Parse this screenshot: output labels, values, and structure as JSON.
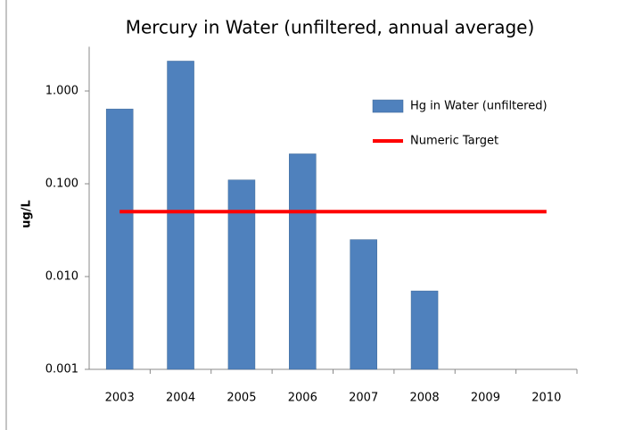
{
  "chart_data": {
    "type": "bar",
    "title": "Mercury in Water (unfiltered, annual average)",
    "y_label": "ug/L",
    "categories": [
      "2003",
      "2004",
      "2005",
      "2006",
      "2007",
      "2008",
      "2009",
      "2010"
    ],
    "series": [
      {
        "name": "Hg in Water (unfiltered)",
        "type": "bar",
        "color": "#4f81bd",
        "values": [
          0.64,
          2.1,
          0.11,
          0.21,
          0.025,
          0.007,
          null,
          null
        ]
      },
      {
        "name": "Numeric Target",
        "type": "line",
        "color": "#ff0000",
        "values": [
          0.05,
          0.05,
          0.05,
          0.05,
          0.05,
          0.05,
          0.05,
          0.05
        ]
      }
    ],
    "log_scale": true,
    "ylim": [
      0.001,
      3
    ],
    "yticks": [
      {
        "value": 0.001,
        "label": "0.001"
      },
      {
        "value": 0.01,
        "label": "0.010"
      },
      {
        "value": 0.1,
        "label": "0.100"
      },
      {
        "value": 1,
        "label": "1.000"
      }
    ],
    "legend": "upper right"
  }
}
